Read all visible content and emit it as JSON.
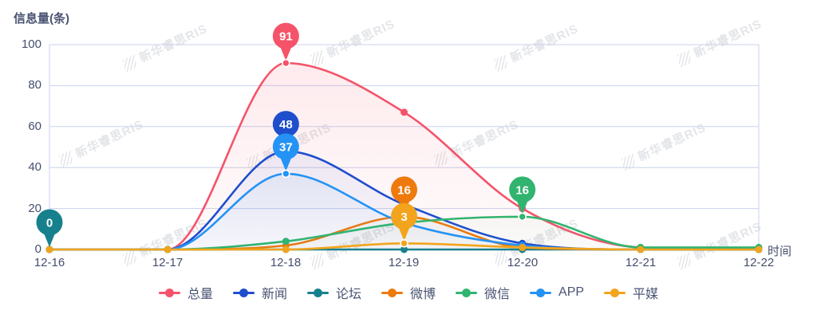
{
  "title": "信息量(条)",
  "watermark": {
    "text": "新华睿思RIS"
  },
  "axis": {
    "x_label": "时间",
    "x_ticks": [
      "12-16",
      "12-17",
      "12-18",
      "12-19",
      "12-20",
      "12-21",
      "12-22"
    ],
    "y_ticks": [
      100,
      80,
      60,
      40,
      20,
      0
    ]
  },
  "colors": {
    "grid": "#c9d0ee",
    "tick_text": "#454f6d",
    "title_text": "#4a5373"
  },
  "chart_data": {
    "type": "area",
    "title": "信息量(条)",
    "xlabel": "时间",
    "ylabel": "信息量(条)",
    "x": [
      "12-16",
      "12-17",
      "12-18",
      "12-19",
      "12-20",
      "12-21",
      "12-22"
    ],
    "ylim": [
      0,
      100
    ],
    "grid": true,
    "legend_position": "bottom",
    "series": [
      {
        "name": "总量",
        "key": "total",
        "color": "#f5536a",
        "fill": true,
        "fill_opacity": 0.13,
        "values": [
          0,
          0,
          91,
          67,
          20,
          1,
          0
        ]
      },
      {
        "name": "新闻",
        "key": "news",
        "color": "#1f4ecd",
        "fill": true,
        "fill_opacity": 0.14,
        "values": [
          0,
          0,
          48,
          22,
          3,
          0,
          0
        ]
      },
      {
        "name": "论坛",
        "key": "forum",
        "color": "#17808d",
        "fill": false,
        "fill_opacity": 0,
        "values": [
          0,
          0,
          0,
          0,
          0,
          0,
          0
        ]
      },
      {
        "name": "微博",
        "key": "weibo",
        "color": "#ee7a0e",
        "fill": true,
        "fill_opacity": 0.06,
        "values": [
          0,
          0,
          2,
          16,
          1,
          0,
          0
        ]
      },
      {
        "name": "微信",
        "key": "wechat",
        "color": "#31b46f",
        "fill": true,
        "fill_opacity": 0.14,
        "values": [
          0,
          0,
          4,
          13,
          16,
          1,
          1
        ]
      },
      {
        "name": "APP",
        "key": "app",
        "color": "#2493f5",
        "fill": true,
        "fill_opacity": 0.17,
        "values": [
          0,
          0,
          37,
          13,
          2,
          0,
          0
        ]
      },
      {
        "name": "平媒",
        "key": "print",
        "color": "#f2a41c",
        "fill": false,
        "fill_opacity": 0,
        "values": [
          0,
          0,
          0,
          3,
          1,
          0,
          0
        ]
      }
    ],
    "balloons": [
      {
        "series": "论坛",
        "x": "12-16",
        "value": 0,
        "show_dot": false
      },
      {
        "series": "总量",
        "x": "12-18",
        "value": 91,
        "show_dot": true
      },
      {
        "series": "新闻",
        "x": "12-18",
        "value": 48,
        "show_dot": true
      },
      {
        "series": "APP",
        "x": "12-18",
        "value": 37,
        "show_dot": true
      },
      {
        "series": "微博",
        "x": "12-19",
        "value": 16,
        "show_dot": true
      },
      {
        "series": "平媒",
        "x": "12-19",
        "value": 3,
        "show_dot": true
      },
      {
        "series": "微信",
        "x": "12-20",
        "value": 16,
        "show_dot": true
      }
    ]
  }
}
